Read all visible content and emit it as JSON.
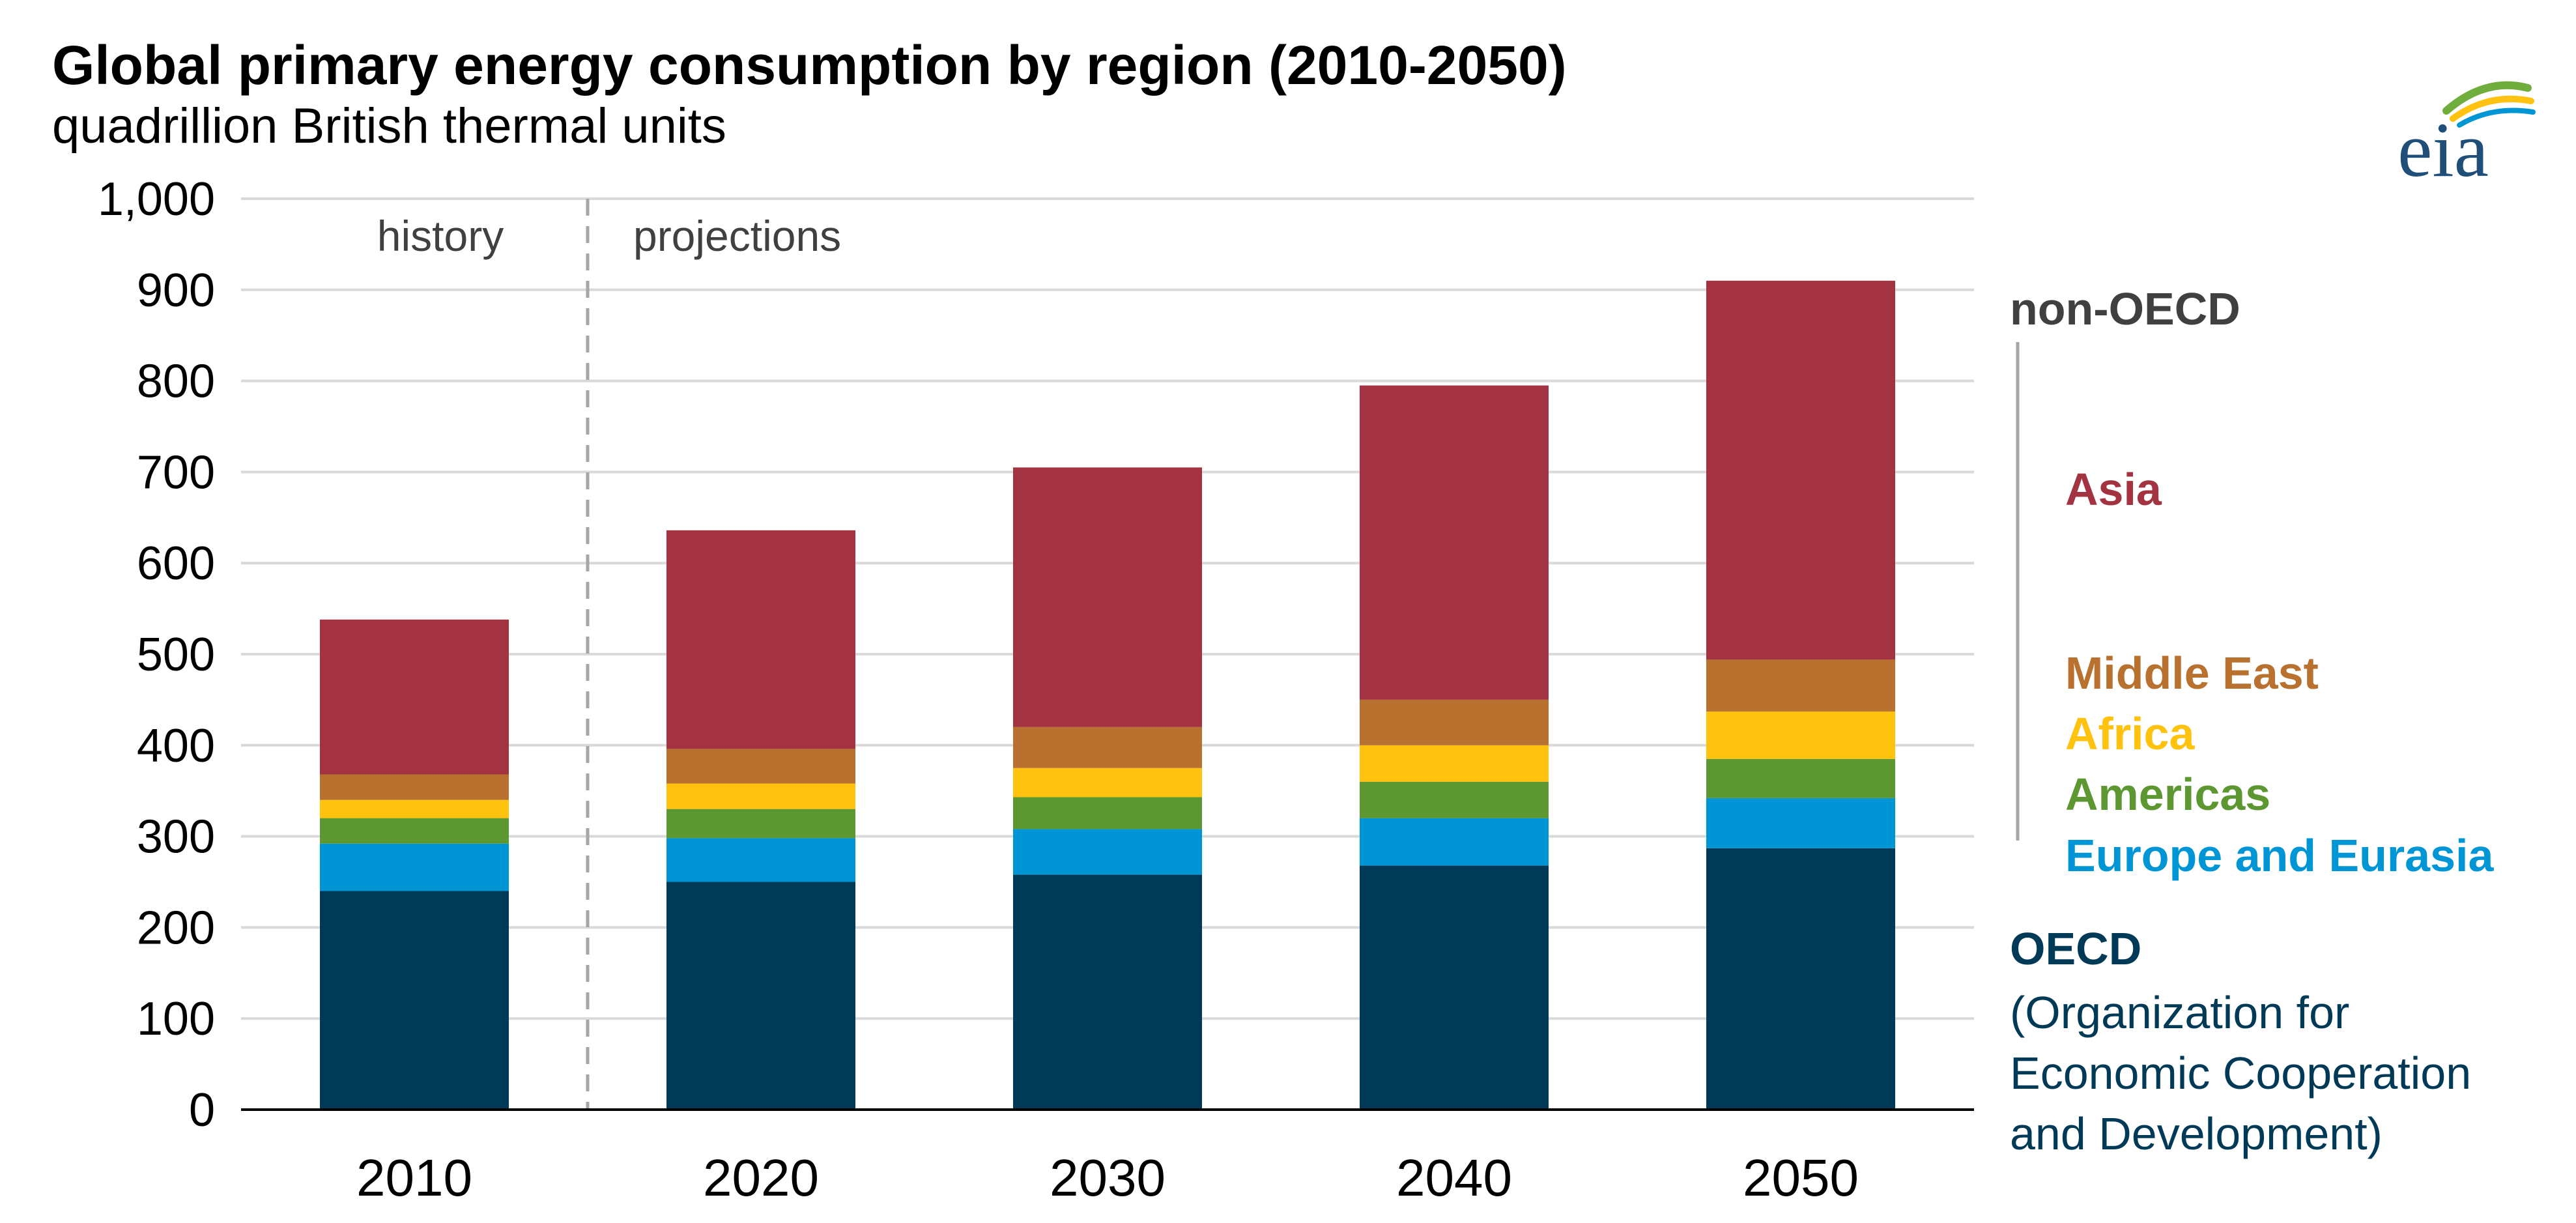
{
  "header": {
    "title": "Global primary energy consumption by region (2010-2050)",
    "subtitle": "quadrillion British thermal units",
    "logo_text": "eia"
  },
  "chart_data": {
    "type": "bar",
    "stacked": true,
    "title": "Global primary energy consumption by region (2010-2050)",
    "subtitle": "quadrillion British thermal units",
    "xlabel": "",
    "ylabel": "",
    "ylim": [
      0,
      1000
    ],
    "yticks": [
      0,
      100,
      200,
      300,
      400,
      500,
      600,
      700,
      800,
      900,
      1000
    ],
    "ytick_labels": [
      "0",
      "100",
      "200",
      "300",
      "400",
      "500",
      "600",
      "700",
      "800",
      "900",
      "1,000"
    ],
    "grid": true,
    "categories": [
      "2010",
      "2020",
      "2030",
      "2040",
      "2050"
    ],
    "annotations": {
      "history": "history",
      "projections": "projections",
      "divider_after_category": "2010"
    },
    "series": [
      {
        "name": "OECD",
        "color": "#003a56",
        "values": [
          240,
          250,
          258,
          268,
          287
        ]
      },
      {
        "name": "Europe and Eurasia",
        "color": "#0096d6",
        "values": [
          52,
          48,
          50,
          52,
          55
        ]
      },
      {
        "name": "Americas",
        "color": "#5d9732",
        "values": [
          28,
          32,
          35,
          40,
          43
        ]
      },
      {
        "name": "Africa",
        "color": "#ffc20e",
        "values": [
          20,
          28,
          32,
          40,
          52
        ]
      },
      {
        "name": "Middle East",
        "color": "#b97130",
        "values": [
          28,
          38,
          45,
          50,
          57
        ]
      },
      {
        "name": "Asia",
        "color": "#a33340",
        "values": [
          170,
          240,
          285,
          345,
          416
        ]
      }
    ],
    "legend": {
      "placement": "right",
      "group_non_oecd": "non-OECD",
      "group_oecd": "OECD",
      "oecd_description": [
        "(Organization for",
        "Economic Cooperation",
        "and Development)"
      ],
      "group_color": "#404040"
    }
  }
}
